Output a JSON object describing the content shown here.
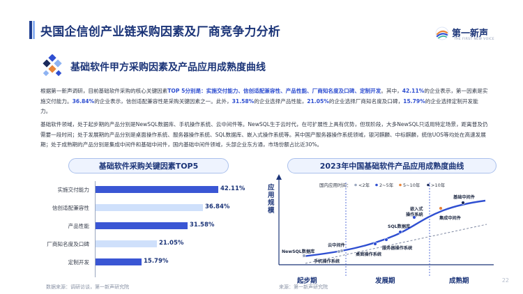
{
  "header": {
    "title": "央国企信创产业链采购因素及厂商竞争力分析",
    "logo_text": "第一新声",
    "logo_subtext": "THE FIRST NEW VOICE"
  },
  "section": {
    "title": "基础软件甲方采购因素及产品应用成熟度曲线"
  },
  "paragraph1": {
    "t1": "根据第一新声调研，目前基础软件采购的核心关键因素",
    "t2": "TOP 5分别是：实施交付能力、信创适配兼容性、产品性能、厂商知名度及口碑、定制开发",
    "t3": "。其中，",
    "t4": "42.11%",
    "t5": "的企业表示，第一因素是实施交付能力。",
    "t6": "36.84%",
    "t7": "的企业表示，信创适配兼容性是采购关键因素之一。此外，",
    "t8": "31.58%",
    "t9": "的企业选择产品性能，",
    "t10": "21.05%",
    "t11": "的企业选择厂商知名度及口碑，",
    "t12": "15.79%",
    "t13": "的企业选择定制开发能力。"
  },
  "paragraph2": "基础软件领域，处于起步期的产品分别是NewSQL数据库、手机操作系统、云中间件等。NewSQL生于云时代，在可扩展性上具有优势，但现阶段，大多NewSQL只适用特定场景，距离普及仍需要一段时间；处于发展期的产品分别是桌面操作系统、服务器操作系统、SQL数据库、嵌入式操作系统等。其中国产服务器操作系统领域，银河麒麟、中标麒麟，统信UOS等均处在高速发展期；处于成熟期的产品分别是集成中间件和基础中间件，国内基础中间件领域，头部企业东方通，市场份额占比近30%。",
  "left_chart": {
    "title": "基础软件采购关键因素TOP5",
    "source": "数据来源：调研访谈，第一新声研究院"
  },
  "right_chart": {
    "title": "2023年中国基础软件产品应用成熟度曲线",
    "source": "来源：第一新声研究院",
    "y_label": "应用规模",
    "legend_title": "国内应用时间：",
    "legend": [
      {
        "label": "<2年",
        "color": "#9aa6bf"
      },
      {
        "label": "2~5年",
        "color": "#2f4fd1"
      },
      {
        "label": "5~10年",
        "color": "#e8853a"
      },
      {
        "label": ">10年",
        "color": "#1b2a5c"
      }
    ],
    "stages": [
      "起步期",
      "发展期",
      "成熟期"
    ],
    "points": [
      {
        "label": "NewSQL数据库"
      },
      {
        "label": "云中间件"
      },
      {
        "label": "手机操作系统"
      },
      {
        "label": "桌面操作系统"
      },
      {
        "label": "服务器操作系统"
      },
      {
        "label": "SQL数据库"
      },
      {
        "label": "嵌入式"
      },
      {
        "label": "操作系统"
      },
      {
        "label": "集成中间件"
      },
      {
        "label": "基础中间件"
      }
    ]
  },
  "chart_data": {
    "type": "bar",
    "categories": [
      "实施交付能力",
      "信创适配兼容性",
      "产品性能",
      "厂商知名度及口碑",
      "定制开发"
    ],
    "values": [
      42.11,
      36.84,
      31.58,
      21.05,
      15.79
    ],
    "value_labels": [
      "42.11%",
      "36.84%",
      "31.58%",
      "21.05%",
      "15.79%"
    ],
    "colors": [
      "#3a56d4",
      "#cfe0fb",
      "#3a56d4",
      "#cfe0fb",
      "#3a56d4"
    ],
    "title": "基础软件采购关键因素TOP5",
    "xlabel": "",
    "ylabel": "",
    "xlim": [
      0,
      42.11
    ],
    "orientation": "horizontal"
  },
  "page_number": "22"
}
